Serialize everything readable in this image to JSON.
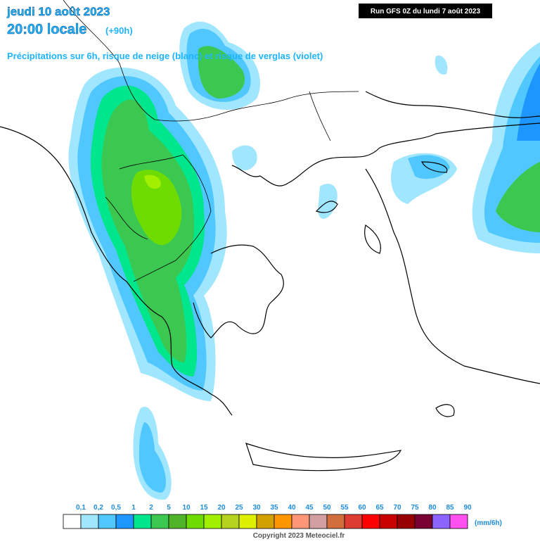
{
  "header": {
    "date": "jeudi 10 août 2023",
    "time": "20:00 locale",
    "lead": "(+90h)",
    "subtitle": "Précipitations sur 6h, risque de neige (blanc) et risque de verglas (violet)",
    "run": "Run GFS 0Z du lundi 7 août 2023"
  },
  "legend": {
    "labels": [
      "0,1",
      "0,2",
      "0,5",
      "1",
      "2",
      "5",
      "10",
      "15",
      "20",
      "25",
      "30",
      "35",
      "40",
      "45",
      "50",
      "55",
      "60",
      "65",
      "70",
      "75",
      "80",
      "85",
      "90"
    ],
    "colors": [
      "#ffffff",
      "#a0e6ff",
      "#50c8ff",
      "#1e96ff",
      "#00e68c",
      "#3cc850",
      "#50b428",
      "#6edc00",
      "#a0f000",
      "#b4d21e",
      "#dcf000",
      "#d2a000",
      "#ff9600",
      "#ff9678",
      "#d2a0a0",
      "#d26e3c",
      "#dc3c32",
      "#ff0000",
      "#c80000",
      "#960000",
      "#780032",
      "#8c64ff",
      "#ff50f0"
    ],
    "unit": "(mm/6h)"
  },
  "footer": {
    "copyright": "Copyright 2023 Meteociel.fr"
  }
}
